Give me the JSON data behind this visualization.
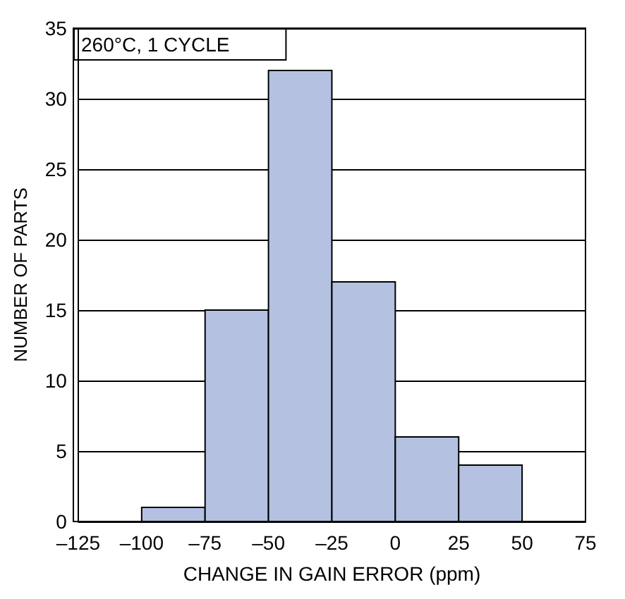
{
  "chart_data": {
    "type": "histogram",
    "xlabel": "CHANGE IN GAIN ERROR (ppm)",
    "ylabel": "NUMBER OF PARTS",
    "annotations": [
      "260°C, 1 CYCLE"
    ],
    "bins": [
      -100,
      -75,
      -50,
      -25,
      0,
      25,
      50
    ],
    "values": [
      1,
      15,
      32,
      17,
      6,
      4
    ],
    "color": "#b4c1e1",
    "xlim": [
      -125,
      75
    ],
    "xticks": [
      {
        "value": -125,
        "label": "–125"
      },
      {
        "value": -100,
        "label": "–100"
      },
      {
        "value": -75,
        "label": "–75"
      },
      {
        "value": -50,
        "label": "–50"
      },
      {
        "value": -25,
        "label": "–25"
      },
      0,
      25,
      50,
      75
    ],
    "ylim": [
      0,
      35
    ],
    "yticks": [
      0,
      5,
      10,
      15,
      20,
      25,
      30,
      35
    ],
    "grid": "y"
  }
}
